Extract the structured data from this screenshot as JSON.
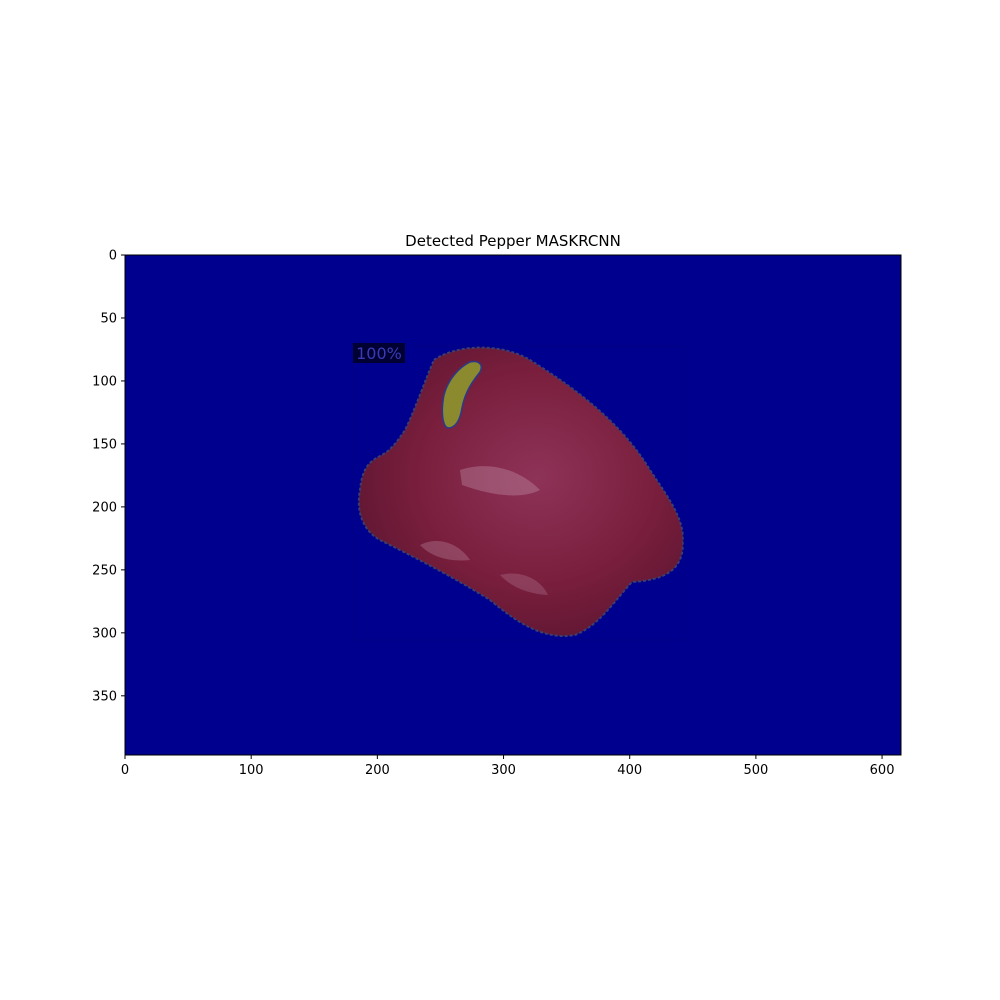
{
  "figure": {
    "title": "Detected Pepper MASKRCNN"
  },
  "axes": {
    "x_range": [
      0,
      615
    ],
    "y_range": [
      0,
      397
    ],
    "x_ticks": [
      0,
      100,
      200,
      300,
      400,
      500,
      600
    ],
    "y_ticks": [
      0,
      50,
      100,
      150,
      200,
      250,
      300,
      350
    ],
    "x_tick_labels": [
      "0",
      "100",
      "200",
      "300",
      "400",
      "500",
      "600"
    ],
    "y_tick_labels": [
      "0",
      "50",
      "100",
      "150",
      "200",
      "250",
      "300",
      "350"
    ],
    "grid": false
  },
  "image": {
    "description": "segmentation result: red bell pepper on a dark blue background",
    "background_color": "#00008f",
    "pepper_color": "#7a1f3d",
    "stem_color": "#8c8a2e"
  },
  "detection": {
    "label": "100%",
    "score": 1.0,
    "bbox_data": [
      181,
      72,
      443,
      305
    ]
  }
}
